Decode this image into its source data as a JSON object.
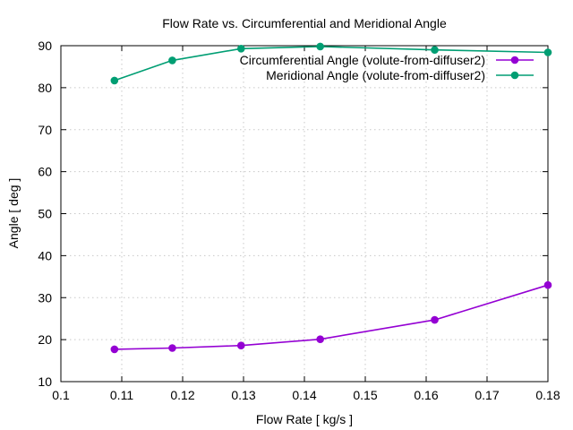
{
  "chart_data": {
    "type": "line",
    "title": "Flow Rate vs. Circumferential and Meridional Angle",
    "xlabel": "Flow Rate [ kg/s ]",
    "ylabel": "Angle [ deg ]",
    "xlim": [
      0.1,
      0.18
    ],
    "ylim": [
      10,
      90
    ],
    "xticks": [
      "0.1",
      "0.11",
      "0.12",
      "0.13",
      "0.14",
      "0.15",
      "0.16",
      "0.17",
      "0.18"
    ],
    "yticks": [
      "10",
      "20",
      "30",
      "40",
      "50",
      "60",
      "70",
      "80",
      "90"
    ],
    "grid": true,
    "legend_position": "top-right",
    "series": [
      {
        "name": "Circumferential Angle (volute-from-diffuser2)",
        "color": "#9400d3",
        "x": [
          0.1088,
          0.1183,
          0.1296,
          0.1426,
          0.1614,
          0.18
        ],
        "y": [
          17.7,
          18.0,
          18.6,
          20.1,
          24.7,
          33.0
        ]
      },
      {
        "name": "Meridional Angle (volute-from-diffuser2)",
        "color": "#009e73",
        "x": [
          0.1088,
          0.1183,
          0.1296,
          0.1426,
          0.1614,
          0.18
        ],
        "y": [
          81.7,
          86.5,
          89.3,
          89.8,
          89.0,
          88.4
        ]
      }
    ]
  }
}
